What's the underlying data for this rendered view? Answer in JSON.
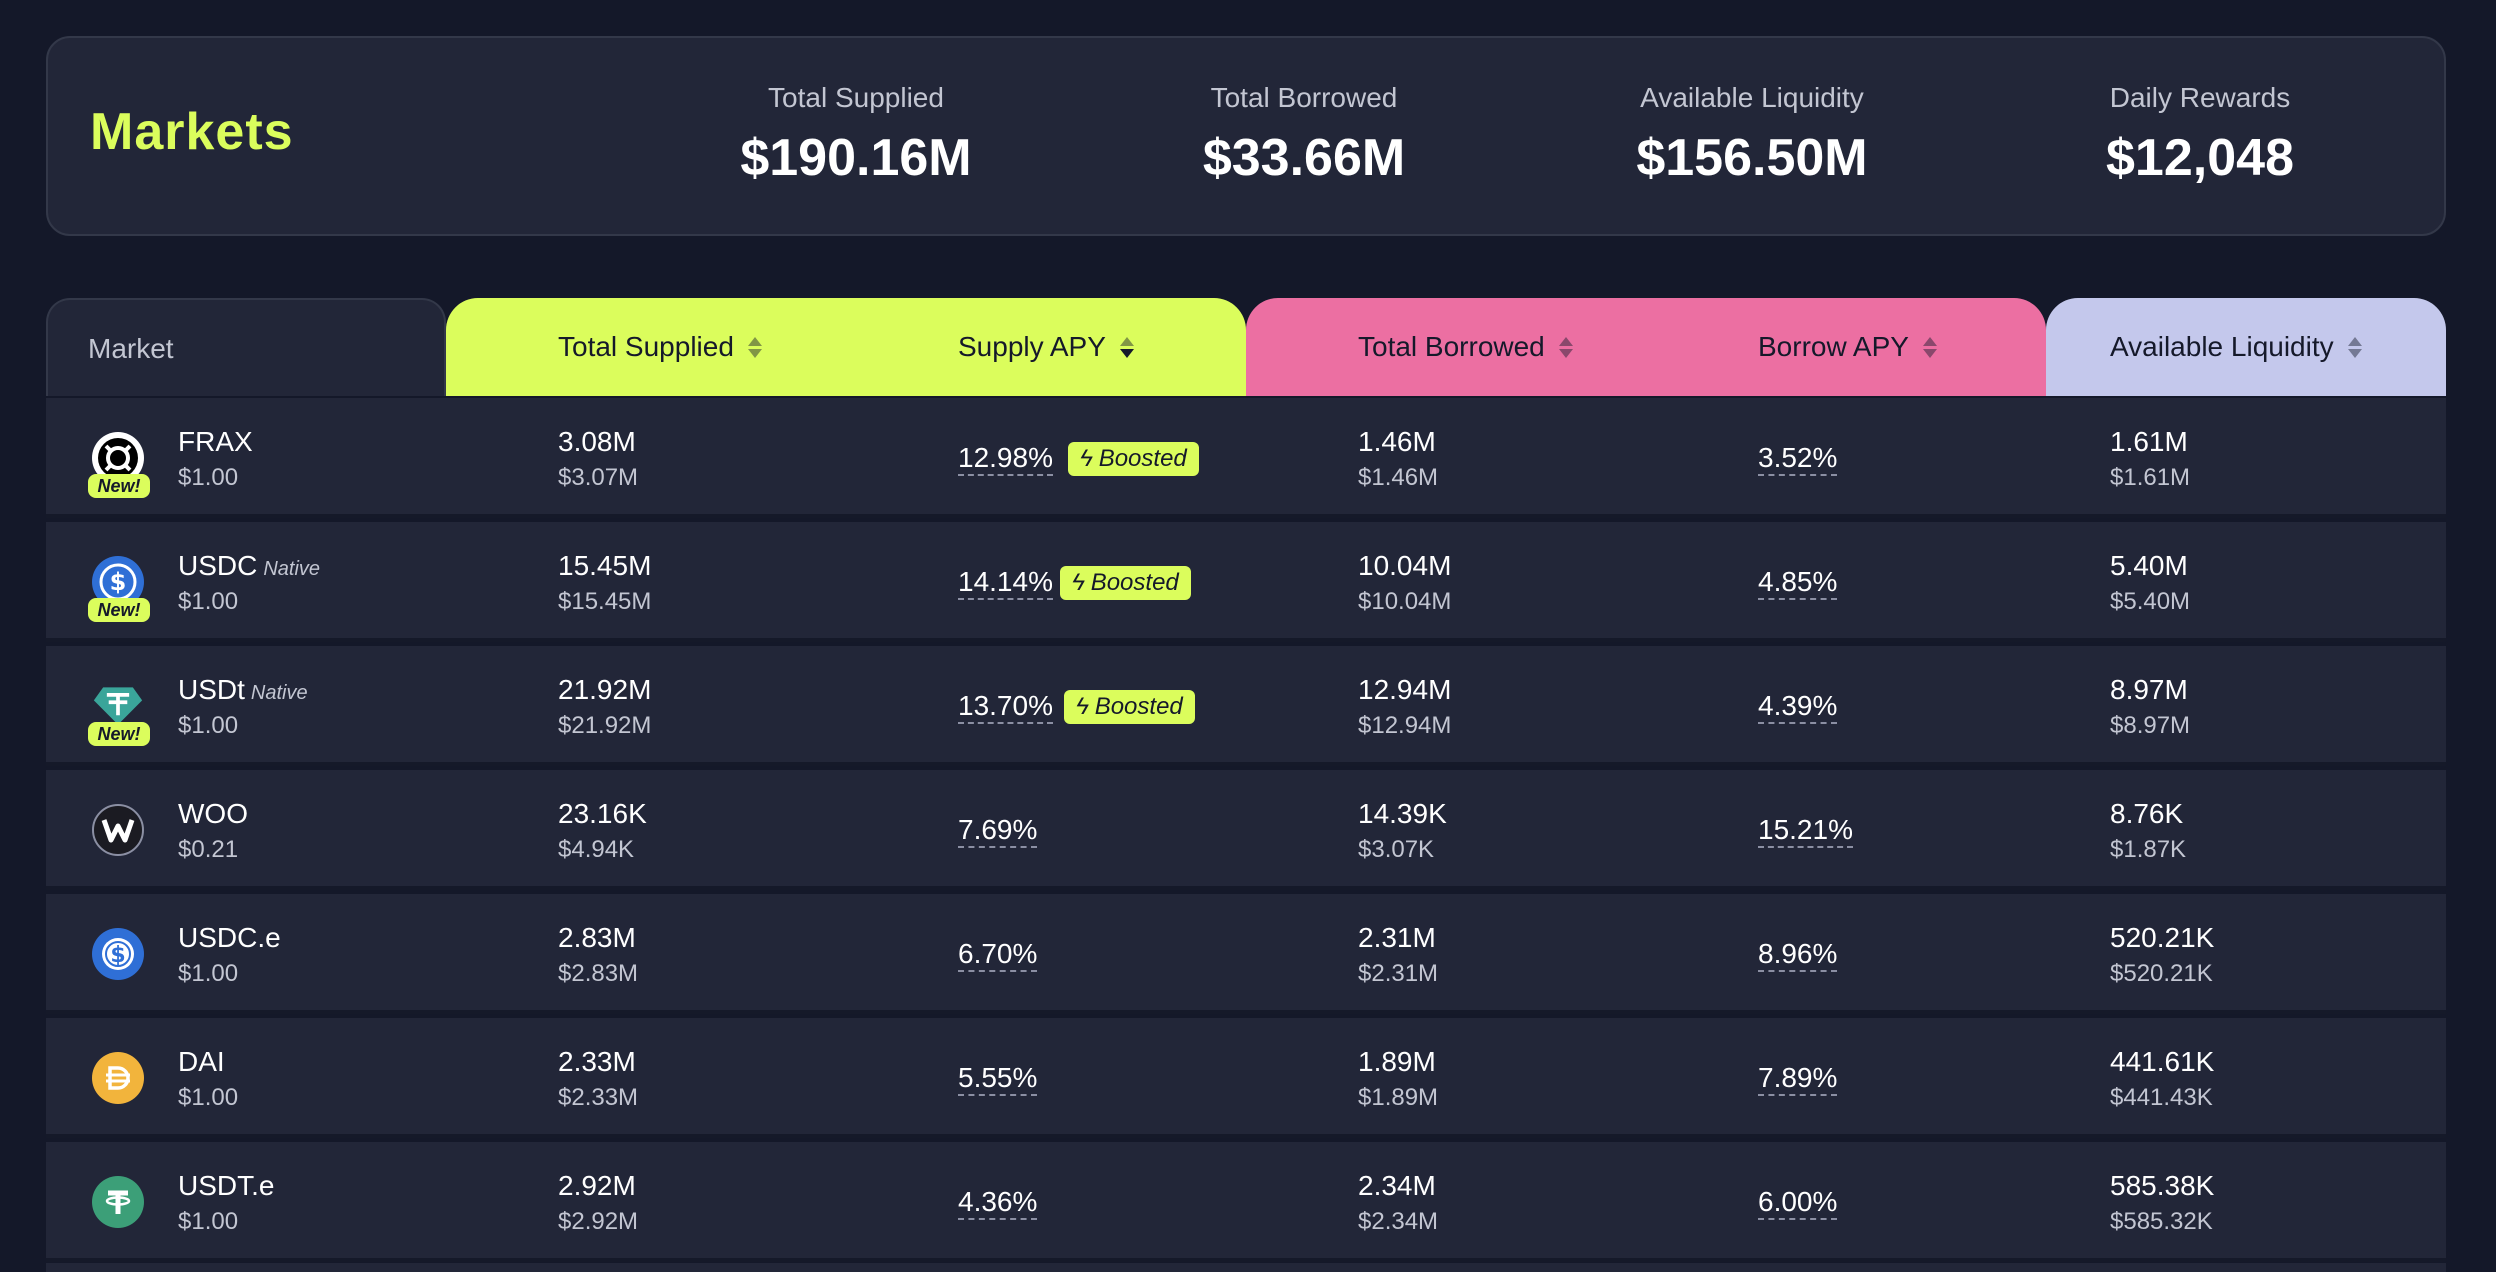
{
  "header": {
    "title": "Markets",
    "stats": [
      {
        "label": "Total Supplied",
        "value": "$190.16M"
      },
      {
        "label": "Total Borrowed",
        "value": "$33.66M"
      },
      {
        "label": "Available Liquidity",
        "value": "$156.50M"
      },
      {
        "label": "Daily Rewards",
        "value": "$12,048"
      }
    ]
  },
  "table": {
    "columns": {
      "market": "Market",
      "total_supplied": "Total Supplied",
      "supply_apy": "Supply APY",
      "total_borrowed": "Total Borrowed",
      "borrow_apy": "Borrow APY",
      "available_liquidity": "Available Liquidity"
    },
    "boost_label": "Boosted",
    "new_label": "New!",
    "rows": [
      {
        "name": "FRAX",
        "tag": "",
        "price": "$1.00",
        "supplied": "3.08M",
        "supplied_usd": "$3.07M",
        "supply_apy": "12.98%",
        "borrowed": "1.46M",
        "borrowed_usd": "$1.46M",
        "borrow_apy": "3.52%",
        "liquidity": "1.61M",
        "liquidity_usd": "$1.61M",
        "icon": "frax-icon",
        "is_new": true,
        "boosted": true
      },
      {
        "name": "USDC",
        "tag": "Native",
        "price": "$1.00",
        "supplied": "15.45M",
        "supplied_usd": "$15.45M",
        "supply_apy": "14.14%",
        "borrowed": "10.04M",
        "borrowed_usd": "$10.04M",
        "borrow_apy": "4.85%",
        "liquidity": "5.40M",
        "liquidity_usd": "$5.40M",
        "icon": "usdc-icon",
        "is_new": true,
        "boosted": true
      },
      {
        "name": "USDt",
        "tag": "Native",
        "price": "$1.00",
        "supplied": "21.92M",
        "supplied_usd": "$21.92M",
        "supply_apy": "13.70%",
        "borrowed": "12.94M",
        "borrowed_usd": "$12.94M",
        "borrow_apy": "4.39%",
        "liquidity": "8.97M",
        "liquidity_usd": "$8.97M",
        "icon": "usdt-icon",
        "is_new": true,
        "boosted": true
      },
      {
        "name": "WOO",
        "tag": "",
        "price": "$0.21",
        "supplied": "23.16K",
        "supplied_usd": "$4.94K",
        "supply_apy": "7.69%",
        "borrowed": "14.39K",
        "borrowed_usd": "$3.07K",
        "borrow_apy": "15.21%",
        "liquidity": "8.76K",
        "liquidity_usd": "$1.87K",
        "icon": "woo-icon",
        "is_new": false,
        "boosted": false
      },
      {
        "name": "USDC.e",
        "tag": "",
        "price": "$1.00",
        "supplied": "2.83M",
        "supplied_usd": "$2.83M",
        "supply_apy": "6.70%",
        "borrowed": "2.31M",
        "borrowed_usd": "$2.31M",
        "borrow_apy": "8.96%",
        "liquidity": "520.21K",
        "liquidity_usd": "$520.21K",
        "icon": "usdc-e-icon",
        "is_new": false,
        "boosted": false
      },
      {
        "name": "DAI",
        "tag": "",
        "price": "$1.00",
        "supplied": "2.33M",
        "supplied_usd": "$2.33M",
        "supply_apy": "5.55%",
        "borrowed": "1.89M",
        "borrowed_usd": "$1.89M",
        "borrow_apy": "7.89%",
        "liquidity": "441.61K",
        "liquidity_usd": "$441.43K",
        "icon": "dai-icon",
        "is_new": false,
        "boosted": false
      },
      {
        "name": "USDT.e",
        "tag": "",
        "price": "$1.00",
        "supplied": "2.92M",
        "supplied_usd": "$2.92M",
        "supply_apy": "4.36%",
        "borrowed": "2.34M",
        "borrowed_usd": "$2.34M",
        "borrow_apy": "6.00%",
        "liquidity": "585.38K",
        "liquidity_usd": "$585.32K",
        "icon": "usdt-e-icon",
        "is_new": false,
        "boosted": false
      }
    ]
  },
  "colors": {
    "background": "#141829",
    "card": "#222638",
    "supply_accent": "#dbfd5c",
    "borrow_accent": "#ec6fa2",
    "liquidity_accent": "#c4c8ec"
  }
}
